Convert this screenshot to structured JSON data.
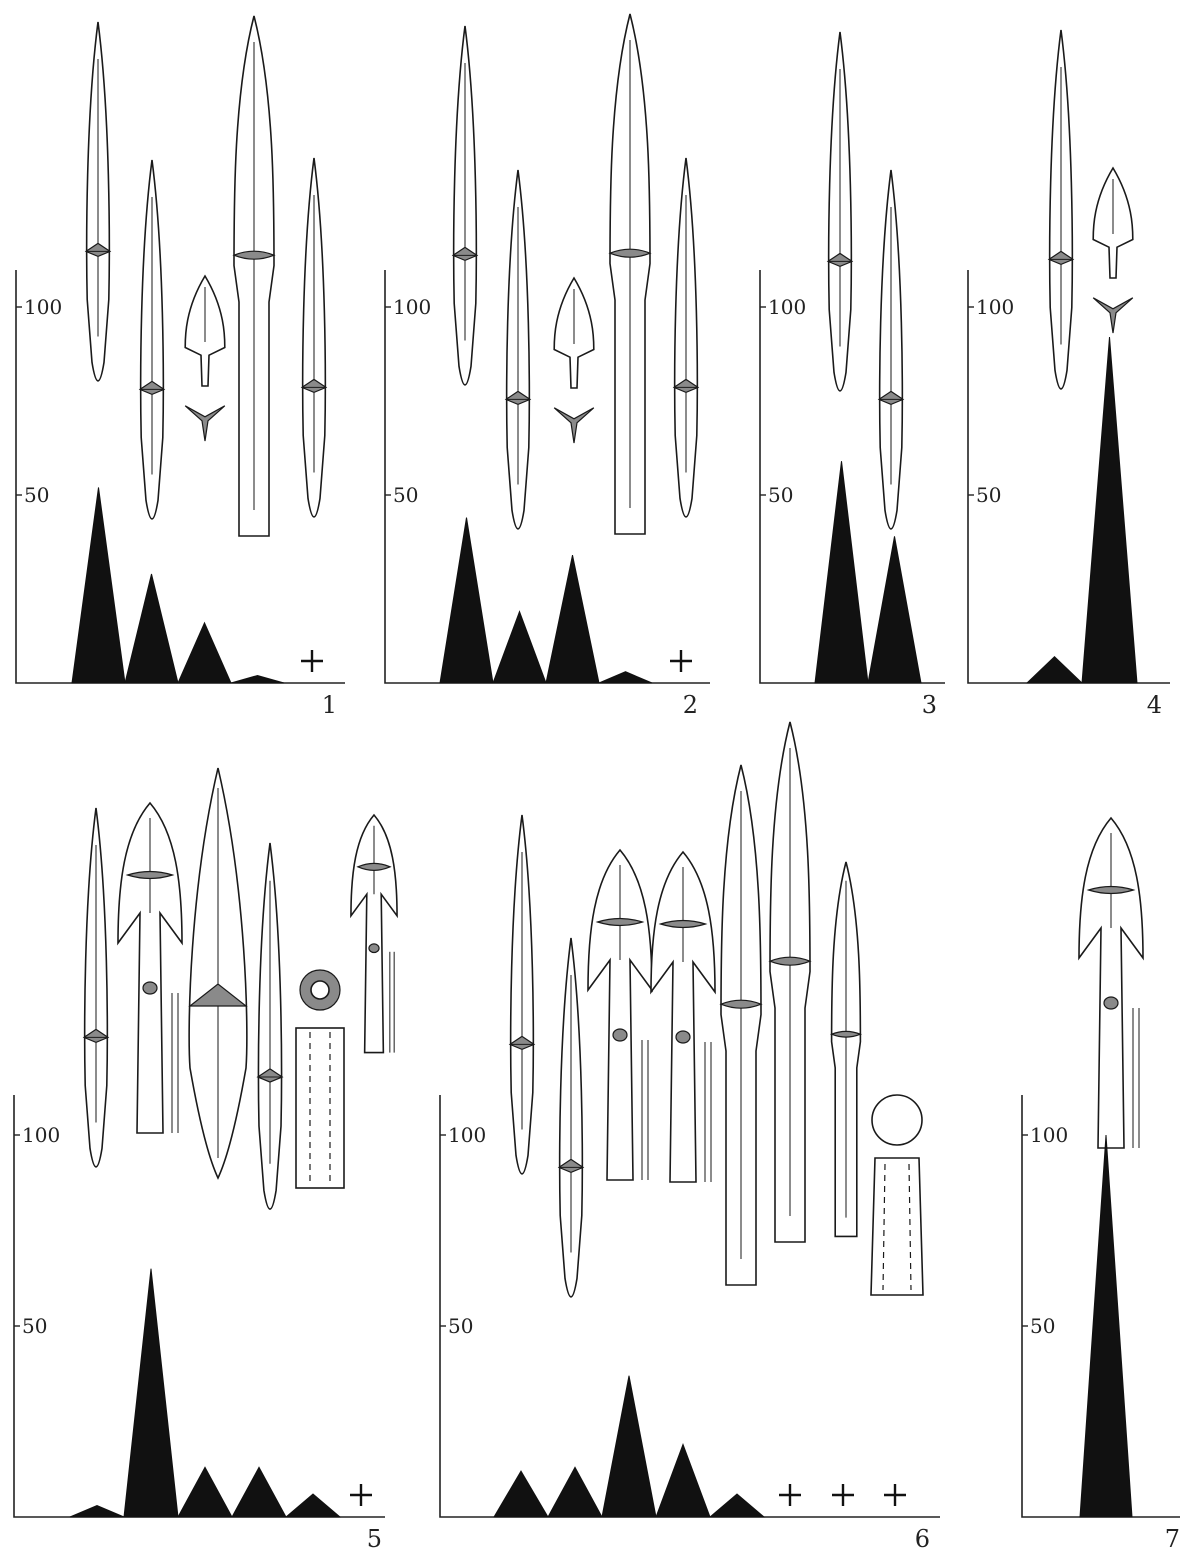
{
  "chart_data": [
    {
      "type": "area",
      "panel_label": "1",
      "ytick_labels": [
        "100",
        "50"
      ],
      "ylim": [
        0,
        100
      ],
      "values": [
        52,
        29,
        16,
        2
      ],
      "absent_marker": "+",
      "absent_count": 1,
      "artifact_types": [
        "bullet-bone",
        "bullet-bone",
        "trilobate-bronze",
        "long-bullet-bone",
        "bullet-bone"
      ]
    },
    {
      "type": "area",
      "panel_label": "2",
      "ytick_labels": [
        "100",
        "50"
      ],
      "ylim": [
        0,
        100
      ],
      "values": [
        44,
        19,
        34,
        3
      ],
      "absent_marker": "+",
      "absent_count": 1,
      "artifact_types": [
        "bullet-bone",
        "bullet-bone",
        "trilobate-bronze",
        "long-bullet-bone",
        "bullet-bone"
      ]
    },
    {
      "type": "area",
      "panel_label": "3",
      "ytick_labels": [
        "100",
        "50"
      ],
      "ylim": [
        0,
        100
      ],
      "values": [
        59,
        39
      ],
      "absent_marker": "+",
      "absent_count": 0,
      "artifact_types": [
        "bullet-bone",
        "bullet-bone"
      ]
    },
    {
      "type": "area",
      "panel_label": "4",
      "ytick_labels": [
        "100",
        "50"
      ],
      "ylim": [
        0,
        100
      ],
      "values": [
        7,
        92
      ],
      "absent_marker": "+",
      "absent_count": 0,
      "artifact_types": [
        "bullet-bone",
        "trilobate-bronze"
      ]
    },
    {
      "type": "area",
      "panel_label": "5",
      "ytick_labels": [
        "100",
        "50"
      ],
      "ylim": [
        0,
        100
      ],
      "values": [
        3,
        65,
        13,
        13,
        6
      ],
      "absent_marker": "+",
      "absent_count": 1,
      "artifact_types": [
        "bullet-bone",
        "barbed-bone",
        "lanceolate-bone",
        "bullet-bone",
        "bone-ring",
        "barbed-bone"
      ]
    },
    {
      "type": "area",
      "panel_label": "6",
      "ytick_labels": [
        "100",
        "50"
      ],
      "ylim": [
        0,
        100
      ],
      "values": [
        12,
        13,
        37,
        19,
        6
      ],
      "absent_marker": "+",
      "absent_count": 3,
      "artifact_types": [
        "bullet-bone",
        "bullet-bone",
        "barbed-bone",
        "barbed-bone",
        "long-bullet-bone",
        "long-bullet-bone",
        "bullet-bone",
        "bone-ring"
      ]
    },
    {
      "type": "area",
      "panel_label": "7",
      "ytick_labels": [
        "100",
        "50"
      ],
      "ylim": [
        0,
        100
      ],
      "values": [
        100
      ],
      "absent_marker": "+",
      "absent_count": 0,
      "artifact_types": [
        "barbed-bone"
      ]
    }
  ]
}
